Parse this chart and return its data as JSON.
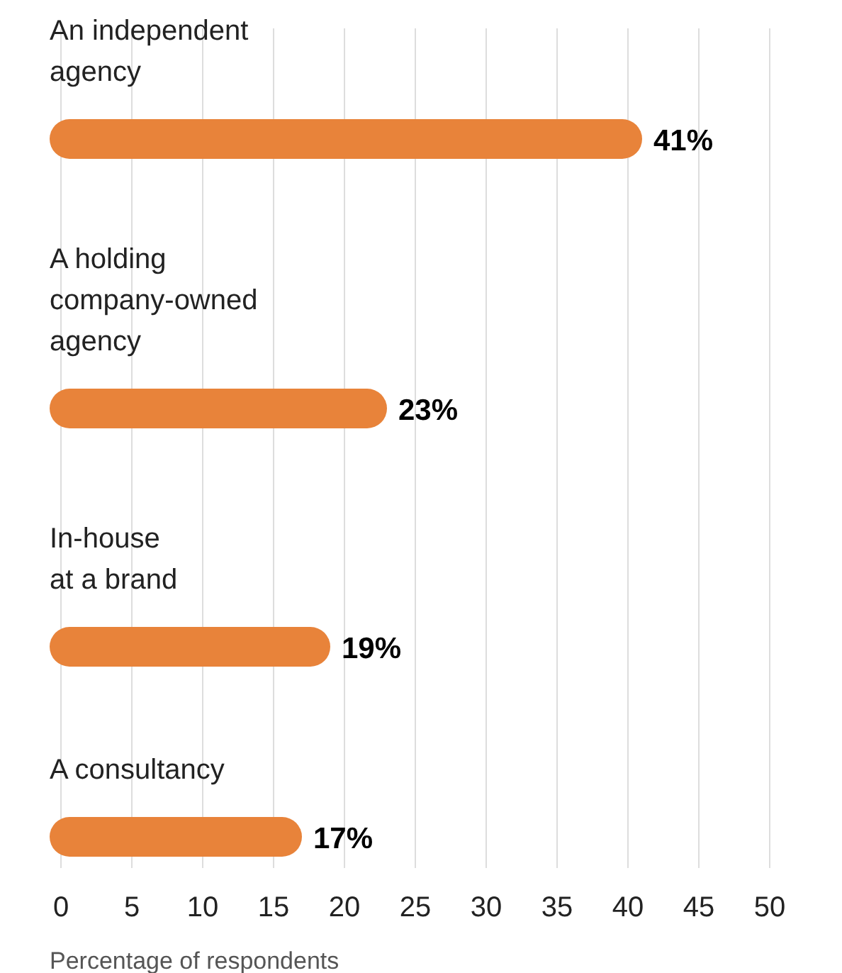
{
  "chart_data": {
    "type": "bar",
    "orientation": "horizontal",
    "categories": [
      "An independent\nagency",
      "A holding\ncompany-owned\nagency",
      "In-house\nat a brand",
      "A consultancy"
    ],
    "values": [
      41,
      23,
      19,
      17
    ],
    "color": "#e8833a",
    "value_labels": [
      "41%",
      "23%",
      "19%",
      "17%"
    ],
    "xlabel": "Percentage of respondents",
    "xlim": [
      0,
      50
    ],
    "xticks": [
      0,
      5,
      10,
      15,
      20,
      25,
      30,
      35,
      40,
      45,
      50
    ],
    "grid": "x"
  }
}
